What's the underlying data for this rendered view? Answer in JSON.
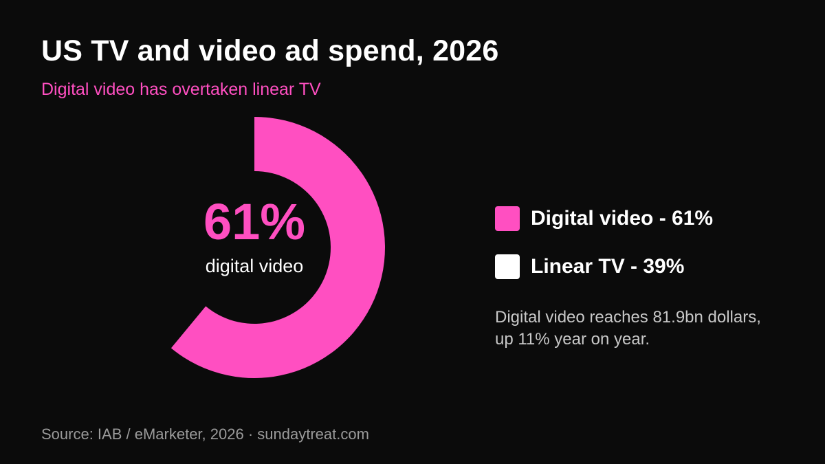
{
  "header": {
    "title": "US TV and video ad spend, 2026",
    "subtitle": "Digital video has overtaken linear TV"
  },
  "chart_data": {
    "type": "pie",
    "variant": "donut",
    "title": "US TV and video ad spend, 2026",
    "subtitle": "Digital video has overtaken linear TV",
    "series": [
      {
        "name": "Digital video",
        "value": 61,
        "color": "#ff4fc1"
      },
      {
        "name": "Linear TV",
        "value": 39,
        "color": "#ffffff",
        "drawn": false
      }
    ],
    "center_value": "61%",
    "center_label": "digital video",
    "legend_position": "right"
  },
  "legend": {
    "items": [
      {
        "label": "Digital video - 61%",
        "color": "#ff4fc1"
      },
      {
        "label": "Linear TV - 39%",
        "color": "#ffffff"
      }
    ]
  },
  "note": {
    "line1": "Digital video reaches 81.9bn dollars,",
    "line2": "up 11% year on year."
  },
  "footer": {
    "source": "Source: IAB / eMarketer, 2026 · sundaytreat.com"
  },
  "colors": {
    "background": "#0b0b0b",
    "accent": "#ff4fc1",
    "muted": "#9a9a9a"
  }
}
